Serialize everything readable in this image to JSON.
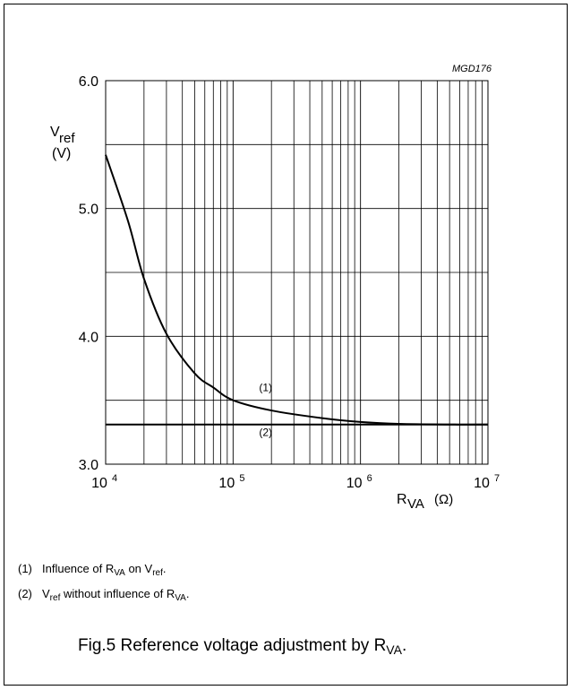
{
  "figure_id": "MGD176",
  "chart_data": {
    "type": "line",
    "xscale": "log",
    "xlim": [
      10000,
      10000000
    ],
    "ylim": [
      3.0,
      6.0
    ],
    "x_ticks": [
      {
        "value": 10000,
        "mantissa": "10",
        "exp": "4"
      },
      {
        "value": 100000,
        "mantissa": "10",
        "exp": "5"
      },
      {
        "value": 1000000,
        "mantissa": "10",
        "exp": "6"
      },
      {
        "value": 10000000,
        "mantissa": "10",
        "exp": "7"
      }
    ],
    "y_ticks": [
      "3.0",
      "4.0",
      "5.0",
      "6.0"
    ],
    "y_ticks_values": [
      3.0,
      4.0,
      5.0,
      6.0
    ],
    "ylabel": {
      "main": "V",
      "sub": "ref",
      "unit": "(V)"
    },
    "xlabel": {
      "main": "R",
      "sub": "VA",
      "unit": "(Ω)"
    },
    "grid": true,
    "series": [
      {
        "name": "(1)",
        "x": [
          10000,
          15000,
          20000,
          30000,
          50000,
          70000,
          100000,
          200000,
          500000,
          1000000,
          2000000,
          5000000,
          10000000
        ],
        "y": [
          5.42,
          4.9,
          4.45,
          4.02,
          3.71,
          3.6,
          3.5,
          3.42,
          3.36,
          3.33,
          3.315,
          3.31,
          3.31
        ]
      },
      {
        "name": "(2)",
        "x": [
          10000,
          10000000
        ],
        "y": [
          3.31,
          3.31
        ]
      }
    ]
  },
  "notes": [
    {
      "num": "(1)",
      "parts": [
        [
          "Influence of R",
          ""
        ],
        [
          "VA",
          "sub"
        ],
        [
          " on V",
          ""
        ],
        [
          "ref",
          "sub"
        ],
        [
          ".",
          ""
        ]
      ]
    },
    {
      "num": "(2)",
      "parts": [
        [
          "V",
          ""
        ],
        [
          "ref",
          "sub"
        ],
        [
          " without influence of R",
          ""
        ],
        [
          "VA",
          "sub"
        ],
        [
          ".",
          ""
        ]
      ]
    }
  ],
  "caption": {
    "text": "Fig.5  Reference voltage adjustment by R",
    "sub": "VA",
    "end": "."
  }
}
